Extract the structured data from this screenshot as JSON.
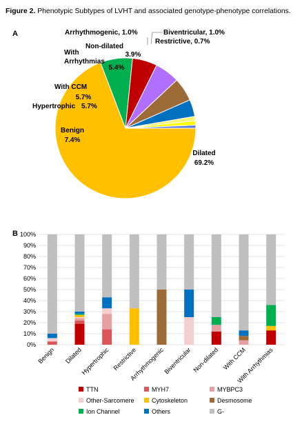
{
  "caption": {
    "label": "Figure 2.",
    "text": "Phenotypic Subtypes of LVHT and associated genotype-phenotype correlations."
  },
  "chart_data": [
    {
      "panel": "A",
      "type": "pie",
      "slices": [
        {
          "name": "Dilated",
          "value": 69.2,
          "label": "69.2%",
          "color": "#ffc000"
        },
        {
          "name": "Benign",
          "value": 7.4,
          "label": "7.4%",
          "color": "#00b050"
        },
        {
          "name": "Hypertrophic",
          "value": 5.7,
          "label": "5.7%",
          "color": "#c00000"
        },
        {
          "name": "With CCM",
          "value": 5.7,
          "label": "5.7%",
          "color": "#b16fff"
        },
        {
          "name": "With Arrhythmias",
          "value": 5.4,
          "label": "5.4%",
          "color": "#9c6b38"
        },
        {
          "name": "Non-dilated",
          "value": 3.9,
          "label": "3.9%",
          "color": "#0070c0"
        },
        {
          "name": "Arrhythmogenic",
          "value": 1.0,
          "label": "1.0%",
          "color": "#f4f472"
        },
        {
          "name": "Biventricular",
          "value": 1.0,
          "label": "1.0%",
          "color": "#ffff00"
        },
        {
          "name": "Restrictive",
          "value": 0.7,
          "label": "0.7%",
          "color": "#5b7bd5"
        }
      ]
    },
    {
      "panel": "B",
      "type": "bar",
      "stacked": true,
      "ylim": [
        0,
        100
      ],
      "yticks": [
        "0%",
        "10%",
        "20%",
        "30%",
        "40%",
        "50%",
        "60%",
        "70%",
        "80%",
        "90%",
        "100%"
      ],
      "categories": [
        "Benign",
        "Dilated",
        "Hypertrophic",
        "Restrictive",
        "Arrhythmogenic",
        "Biventricular",
        "Non-dilated",
        "With CCM",
        "With Arrhythmias"
      ],
      "legend_position": "bottom",
      "series": [
        {
          "name": "TTN",
          "color": "#c00000",
          "values": [
            0,
            19,
            0,
            0,
            0,
            0,
            12,
            0,
            13
          ]
        },
        {
          "name": "MYH7",
          "color": "#d9575b",
          "values": [
            3,
            3,
            14,
            0,
            0,
            0,
            0,
            0,
            0
          ]
        },
        {
          "name": "MYBPC3",
          "color": "#e6a0a2",
          "values": [
            0,
            2,
            14,
            0,
            0,
            0,
            6,
            4,
            0
          ]
        },
        {
          "name": "Other-Sarcomere",
          "color": "#f3cfcf",
          "values": [
            3,
            1,
            5,
            0,
            0,
            25,
            0,
            0,
            0
          ]
        },
        {
          "name": "Cytoskeleton",
          "color": "#ffc000",
          "values": [
            0,
            2,
            0,
            33,
            0,
            0,
            0,
            0,
            4
          ]
        },
        {
          "name": "Desmosome",
          "color": "#9c6b38",
          "values": [
            0,
            0,
            0,
            0,
            50,
            0,
            0,
            4,
            0
          ]
        },
        {
          "name": "Ion Channel",
          "color": "#00b050",
          "values": [
            0,
            1,
            0,
            0,
            0,
            0,
            7,
            0,
            19
          ]
        },
        {
          "name": "Others",
          "color": "#0070c0",
          "values": [
            4,
            2,
            10,
            0,
            0,
            25,
            0,
            5,
            0
          ]
        },
        {
          "name": "G-",
          "color": "#bfbfbf",
          "values": [
            90,
            70,
            57,
            67,
            50,
            50,
            75,
            87,
            64
          ]
        }
      ]
    }
  ]
}
